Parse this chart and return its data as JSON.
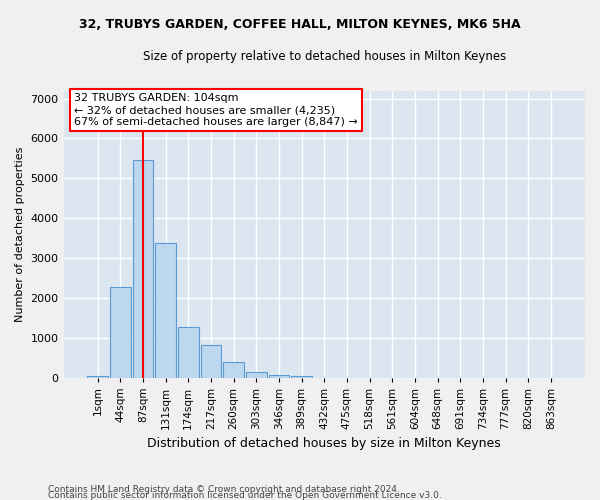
{
  "title_line1": "32, TRUBYS GARDEN, COFFEE HALL, MILTON KEYNES, MK6 5HA",
  "title_line2": "Size of property relative to detached houses in Milton Keynes",
  "xlabel": "Distribution of detached houses by size in Milton Keynes",
  "ylabel": "Number of detached properties",
  "footnote1": "Contains HM Land Registry data © Crown copyright and database right 2024.",
  "footnote2": "Contains public sector information licensed under the Open Government Licence v3.0.",
  "bar_labels": [
    "1sqm",
    "44sqm",
    "87sqm",
    "131sqm",
    "174sqm",
    "217sqm",
    "260sqm",
    "303sqm",
    "346sqm",
    "389sqm",
    "432sqm",
    "475sqm",
    "518sqm",
    "561sqm",
    "604sqm",
    "648sqm",
    "691sqm",
    "734sqm",
    "777sqm",
    "820sqm",
    "863sqm"
  ],
  "bar_values": [
    50,
    2280,
    5450,
    3380,
    1260,
    820,
    380,
    150,
    75,
    50,
    0,
    0,
    0,
    0,
    0,
    0,
    0,
    0,
    0,
    0,
    0
  ],
  "bar_color": "#bdd7ee",
  "bar_edgecolor": "#5b9bd5",
  "background_color": "#dce6f1",
  "grid_color": "#ffffff",
  "vline_x": 2,
  "vline_color": "red",
  "annotation_text": "32 TRUBYS GARDEN: 104sqm\n← 32% of detached houses are smaller (4,235)\n67% of semi-detached houses are larger (8,847) →",
  "ylim": [
    0,
    7200
  ],
  "yticks": [
    0,
    1000,
    2000,
    3000,
    4000,
    5000,
    6000,
    7000
  ],
  "fig_bg": "#f0f0f0"
}
